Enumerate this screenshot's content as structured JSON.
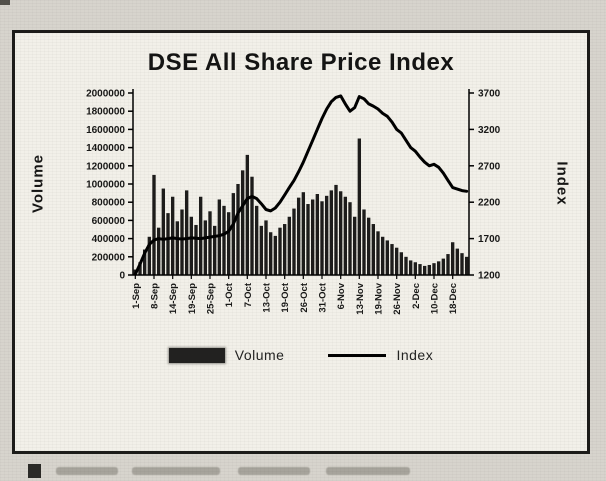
{
  "colors": {
    "bar": "#1d1c1b",
    "line": "#000000",
    "text": "#171716",
    "paper": "#f2f0e9",
    "page_bg": "#d7d4cd",
    "frame": "#1c1b19"
  },
  "chart_data": {
    "type": "bar+line",
    "title": "DSE All Share Price Index",
    "grid": false,
    "n_points": 72,
    "x_tick_labels": [
      "1-Sep",
      "8-Sep",
      "14-Sep",
      "19-Sep",
      "25-Sep",
      "1-Oct",
      "7-Oct",
      "13-Oct",
      "19-Oct",
      "26-Oct",
      "31-Oct",
      "6-Nov",
      "13-Nov",
      "19-Nov",
      "26-Nov",
      "2-Dec",
      "10-Dec",
      "18-Dec"
    ],
    "x_tick_indices": [
      0,
      4,
      8,
      12,
      16,
      20,
      24,
      28,
      32,
      36,
      40,
      44,
      48,
      52,
      56,
      60,
      64,
      68
    ],
    "left_axis": {
      "label": "Volume",
      "min": 0,
      "max": 2000000,
      "ticks": [
        0,
        200000,
        400000,
        600000,
        800000,
        1000000,
        1200000,
        1400000,
        1600000,
        1800000,
        2000000
      ]
    },
    "right_axis": {
      "label": "Index",
      "min": 1200,
      "max": 3700,
      "ticks": [
        1200,
        1700,
        2200,
        2700,
        3200,
        3700
      ]
    },
    "series": [
      {
        "name": "Volume",
        "type": "bar",
        "axis": "left",
        "values": [
          60000,
          140000,
          280000,
          420000,
          1100000,
          520000,
          950000,
          680000,
          860000,
          590000,
          720000,
          930000,
          640000,
          550000,
          860000,
          600000,
          700000,
          540000,
          830000,
          760000,
          690000,
          900000,
          1000000,
          1150000,
          1320000,
          1080000,
          760000,
          540000,
          600000,
          470000,
          430000,
          520000,
          560000,
          640000,
          730000,
          850000,
          910000,
          780000,
          830000,
          890000,
          810000,
          870000,
          930000,
          990000,
          920000,
          860000,
          800000,
          640000,
          1500000,
          720000,
          630000,
          560000,
          480000,
          420000,
          380000,
          340000,
          300000,
          250000,
          200000,
          160000,
          140000,
          120000,
          100000,
          110000,
          130000,
          150000,
          180000,
          230000,
          360000,
          290000,
          240000,
          200000
        ]
      },
      {
        "name": "Index",
        "type": "line",
        "axis": "right",
        "values": [
          1210,
          1350,
          1500,
          1620,
          1680,
          1700,
          1690,
          1700,
          1710,
          1700,
          1695,
          1700,
          1710,
          1705,
          1700,
          1710,
          1720,
          1730,
          1740,
          1760,
          1800,
          1900,
          2050,
          2150,
          2250,
          2280,
          2250,
          2180,
          2100,
          2080,
          2120,
          2200,
          2300,
          2400,
          2500,
          2620,
          2750,
          2900,
          3050,
          3200,
          3350,
          3480,
          3580,
          3640,
          3660,
          3550,
          3450,
          3500,
          3650,
          3620,
          3550,
          3520,
          3480,
          3420,
          3380,
          3300,
          3200,
          3150,
          3050,
          2950,
          2900,
          2820,
          2750,
          2700,
          2720,
          2680,
          2600,
          2500,
          2400,
          2380,
          2360,
          2350
        ]
      }
    ],
    "legend": {
      "position": "bottom",
      "entries": [
        "Volume",
        "Index"
      ]
    }
  }
}
